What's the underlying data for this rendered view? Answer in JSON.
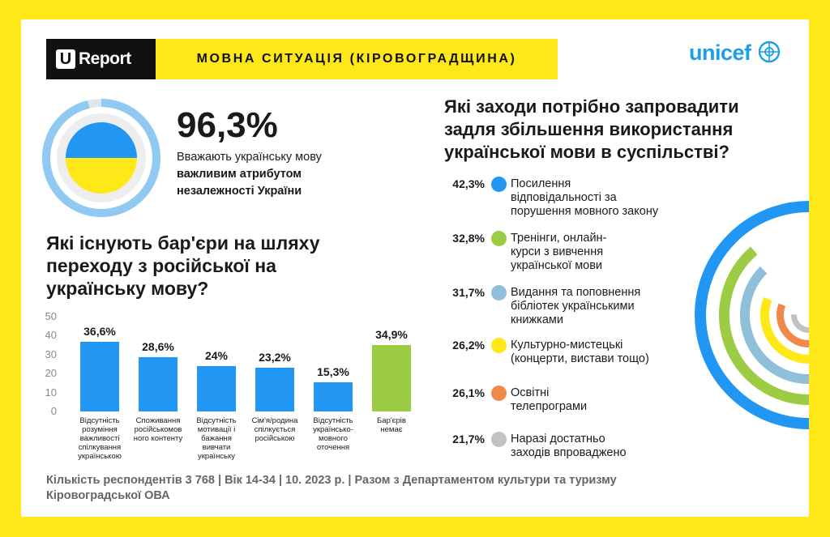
{
  "header": {
    "logo_mark": "U",
    "logo_text": "Report",
    "title": "МОВНА СИТУАЦІЯ (КІРОВОГРАДЩИНА)",
    "partner_logo": "unicef"
  },
  "highlight": {
    "value": "96,3%",
    "desc_line1": "Вважають українську мову",
    "desc_bold1": "важливим атрибутом",
    "desc_bold2": "незалежності України",
    "fraction": 0.963
  },
  "barriers": {
    "question_lines": [
      "Які існують бар'єри на шляху",
      "переходу з російської на",
      "українську мову?"
    ]
  },
  "chart_data": [
    {
      "type": "bar",
      "yticks": [
        "0",
        "10",
        "20",
        "30",
        "40",
        "50"
      ],
      "ylim": [
        0,
        50
      ],
      "categories": [
        [
          "Відсутність",
          "розуміння",
          "важливості",
          "спілкування",
          "українською"
        ],
        [
          "Споживання",
          "російськомов",
          "ного контенту"
        ],
        [
          "Відсутність",
          "мотивації і",
          "бажання",
          "вивчати",
          "українську"
        ],
        [
          "Сім'я/родина",
          "спілкується",
          "російською"
        ],
        [
          "Відсутність",
          "українсько-",
          "мовного",
          "оточення"
        ],
        [
          "Бар'єрів",
          "немає"
        ]
      ],
      "values": [
        36.6,
        28.6,
        24,
        23.2,
        15.3,
        34.9
      ],
      "labels": [
        "36,6%",
        "28,6%",
        "24%",
        "23,2%",
        "15,3%",
        "34,9%"
      ],
      "colors": [
        "#2196f3",
        "#2196f3",
        "#2196f3",
        "#2196f3",
        "#2196f3",
        "#9ccc43"
      ],
      "grid": false
    },
    {
      "type": "bar",
      "orientation": "radial",
      "question_lines": [
        "Які заходи потрібно запровадити",
        "задля збільшення використання",
        "української мови в суспільстві?"
      ],
      "values": [
        42.3,
        32.8,
        31.7,
        26.2,
        26.1,
        21.7
      ],
      "labels": [
        "42,3%",
        "32,8%",
        "31,7%",
        "26,2%",
        "26,1%",
        "21,7%"
      ],
      "categories": [
        [
          "Посилення",
          "відповідальності за",
          "порушення мовного закону"
        ],
        [
          "Тренінги, онлайн-",
          "курси з вивчення",
          "української мови"
        ],
        [
          "Видання та поповнення",
          "бібліотек українськими",
          "книжками"
        ],
        [
          "Культурно-мистецькі",
          "(концерти, вистави тощо)"
        ],
        [
          "Освітні",
          "телепрограми"
        ],
        [
          "Наразі достатньо",
          "заходів впроваджено"
        ]
      ],
      "colors": [
        "#2196f3",
        "#9ccc43",
        "#8fbfd9",
        "#ffe817",
        "#f08a4b",
        "#c2c2c2"
      ]
    }
  ],
  "footer": {
    "line1": "Кількість респондентів 3 768 |  Вік 14-34 | 10. 2023 р. | Разом з Департаментом культури та туризму",
    "line2": "Кіровоградської ОВА"
  }
}
